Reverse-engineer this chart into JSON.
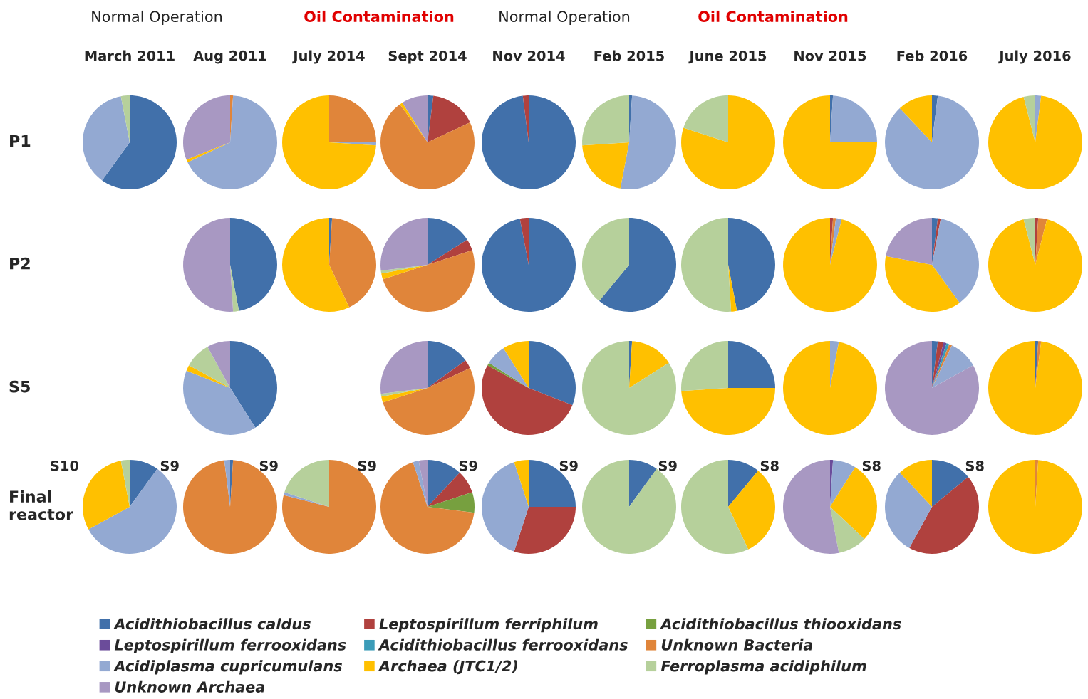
{
  "chart_data": [
    {
      "type": "other",
      "annotations": [
        "Normal Operation",
        "Oil Contamination",
        "Normal Operation",
        "Oil Contamination"
      ]
    },
    {
      "type": "pie",
      "title": "March 2011",
      "ylabel": "P1",
      "categories": [
        null,
        null,
        null
      ],
      "values": [
        60,
        37,
        3
      ],
      "colors": [
        "#4170aa",
        "#93a9d2",
        "#b6d09b"
      ]
    },
    {
      "type": "pie",
      "title": "Aug 2011",
      "categories": [
        null,
        null,
        null,
        null
      ],
      "values": [
        1,
        67,
        1,
        31
      ],
      "colors": [
        "#e0853a",
        "#93a9d2",
        "#ffc000",
        "#a898c2"
      ]
    },
    {
      "type": "pie",
      "title": "July 2014",
      "categories": [
        null,
        null,
        null
      ],
      "values": [
        25,
        1,
        74
      ],
      "colors": [
        "#e0853a",
        "#93a9d2",
        "#ffc000"
      ]
    },
    {
      "type": "pie",
      "title": "Sept 2014",
      "categories": [
        null,
        null,
        null,
        null,
        null
      ],
      "values": [
        2,
        16,
        72,
        1,
        9
      ],
      "colors": [
        "#4170aa",
        "#b0413e",
        "#e0853a",
        "#ffc000",
        "#a898c2"
      ]
    },
    {
      "type": "pie",
      "title": "Nov 2014",
      "categories": [
        null,
        null
      ],
      "values": [
        98,
        2
      ],
      "colors": [
        "#4170aa",
        "#b0413e"
      ]
    },
    {
      "type": "pie",
      "title": "Feb 2015",
      "categories": [
        null,
        null,
        null,
        null
      ],
      "values": [
        1,
        52,
        21,
        26
      ],
      "colors": [
        "#4170aa",
        "#93a9d2",
        "#ffc000",
        "#b6d09b"
      ]
    },
    {
      "type": "pie",
      "title": "June 2015",
      "categories": [
        null,
        null
      ],
      "values": [
        80,
        20
      ],
      "colors": [
        "#ffc000",
        "#b6d09b"
      ]
    },
    {
      "type": "pie",
      "title": "Nov 2015",
      "categories": [
        null,
        null,
        null
      ],
      "values": [
        1,
        24,
        75
      ],
      "colors": [
        "#4170aa",
        "#93a9d2",
        "#ffc000"
      ]
    },
    {
      "type": "pie",
      "title": "Feb 2016",
      "categories": [
        null,
        null,
        null
      ],
      "values": [
        2,
        86,
        12
      ],
      "colors": [
        "#4170aa",
        "#93a9d2",
        "#ffc000"
      ]
    },
    {
      "type": "pie",
      "title": "July 2016",
      "categories": [
        null,
        null,
        null
      ],
      "values": [
        2,
        94,
        4
      ],
      "colors": [
        "#93a9d2",
        "#ffc000",
        "#b6d09b"
      ]
    },
    {
      "type": "pie",
      "ylabel": "P2",
      "categories": [
        null,
        null,
        null
      ],
      "values": [
        47,
        2,
        51
      ],
      "colors": [
        "#4170aa",
        "#b6d09b",
        "#a898c2"
      ]
    },
    {
      "type": "pie",
      "categories": [
        null,
        null,
        null
      ],
      "values": [
        1,
        42,
        57
      ],
      "colors": [
        "#4170aa",
        "#e0853a",
        "#ffc000"
      ]
    },
    {
      "type": "pie",
      "categories": [
        null,
        null,
        null,
        null,
        null,
        null
      ],
      "values": [
        16,
        4,
        50,
        2,
        1,
        27
      ],
      "colors": [
        "#4170aa",
        "#b0413e",
        "#e0853a",
        "#ffc000",
        "#b6d09b",
        "#a898c2"
      ]
    },
    {
      "type": "pie",
      "categories": [
        null,
        null
      ],
      "values": [
        97,
        3
      ],
      "colors": [
        "#4170aa",
        "#b0413e"
      ]
    },
    {
      "type": "pie",
      "categories": [
        null,
        null
      ],
      "values": [
        61,
        39
      ],
      "colors": [
        "#4170aa",
        "#b6d09b"
      ]
    },
    {
      "type": "pie",
      "categories": [
        null,
        null,
        null
      ],
      "values": [
        47,
        2,
        51
      ],
      "colors": [
        "#4170aa",
        "#ffc000",
        "#b6d09b"
      ]
    },
    {
      "type": "pie",
      "categories": [
        null,
        null,
        null,
        null
      ],
      "values": [
        1,
        1,
        2,
        96
      ],
      "colors": [
        "#b0413e",
        "#e0853a",
        "#93a9d2",
        "#ffc000"
      ]
    },
    {
      "type": "pie",
      "categories": [
        null,
        null,
        null,
        null,
        null
      ],
      "values": [
        2,
        1,
        37,
        38,
        22
      ],
      "colors": [
        "#4170aa",
        "#b0413e",
        "#93a9d2",
        "#ffc000",
        "#a898c2"
      ]
    },
    {
      "type": "pie",
      "categories": [
        null,
        null,
        null,
        null
      ],
      "values": [
        1,
        3,
        92,
        4
      ],
      "colors": [
        "#b0413e",
        "#e0853a",
        "#ffc000",
        "#b6d09b"
      ]
    },
    {
      "type": "pie",
      "ylabel": "S5",
      "categories": [
        null,
        null,
        null,
        null,
        null
      ],
      "values": [
        41,
        40,
        2,
        9,
        8
      ],
      "colors": [
        "#4170aa",
        "#93a9d2",
        "#ffc000",
        "#b6d09b",
        "#a898c2"
      ]
    },
    {
      "type": "pie",
      "categories": [
        null,
        null,
        null,
        null,
        null,
        null
      ],
      "values": [
        15,
        3,
        52,
        2,
        1,
        27
      ],
      "colors": [
        "#4170aa",
        "#b0413e",
        "#e0853a",
        "#ffc000",
        "#b6d09b",
        "#a898c2"
      ]
    },
    {
      "type": "pie",
      "categories": [
        null,
        null,
        null,
        null,
        null
      ],
      "values": [
        31,
        52,
        1,
        7,
        9
      ],
      "colors": [
        "#4170aa",
        "#b0413e",
        "#77a03f",
        "#93a9d2",
        "#ffc000"
      ]
    },
    {
      "type": "pie",
      "categories": [
        null,
        null,
        null
      ],
      "values": [
        1,
        15,
        84
      ],
      "colors": [
        "#4170aa",
        "#ffc000",
        "#b6d09b"
      ]
    },
    {
      "type": "pie",
      "categories": [
        null,
        null,
        null
      ],
      "values": [
        25,
        49,
        26
      ],
      "colors": [
        "#4170aa",
        "#ffc000",
        "#b6d09b"
      ]
    },
    {
      "type": "pie",
      "categories": [
        null,
        null
      ],
      "values": [
        3,
        97
      ],
      "colors": [
        "#93a9d2",
        "#ffc000"
      ]
    },
    {
      "type": "pie",
      "categories": [
        null,
        null,
        null,
        null,
        null,
        null,
        null
      ],
      "values": [
        2,
        2,
        1,
        1,
        1,
        10,
        83
      ],
      "colors": [
        "#4170aa",
        "#b0413e",
        "#6b4c9a",
        "#3b9cb8",
        "#e0853a",
        "#93a9d2",
        "#a898c2"
      ]
    },
    {
      "type": "pie",
      "categories": [
        null,
        null,
        null
      ],
      "values": [
        1,
        1,
        98
      ],
      "colors": [
        "#4170aa",
        "#e0853a",
        "#ffc000"
      ]
    },
    {
      "type": "pie",
      "ylabel": "Final reactor",
      "annotations": [
        "S10"
      ],
      "categories": [
        null,
        null,
        null,
        null
      ],
      "values": [
        10,
        57,
        30,
        3
      ],
      "colors": [
        "#4170aa",
        "#93a9d2",
        "#ffc000",
        "#b6d09b"
      ]
    },
    {
      "type": "pie",
      "annotations": [
        "S9"
      ],
      "categories": [
        null,
        null,
        null
      ],
      "values": [
        1,
        97,
        2
      ],
      "colors": [
        "#4170aa",
        "#e0853a",
        "#93a9d2"
      ]
    },
    {
      "type": "pie",
      "annotations": [
        "S9"
      ],
      "categories": [
        null,
        null,
        null
      ],
      "values": [
        79,
        1,
        20
      ],
      "colors": [
        "#e0853a",
        "#93a9d2",
        "#b6d09b"
      ]
    },
    {
      "type": "pie",
      "annotations": [
        "S9"
      ],
      "categories": [
        null,
        null,
        null,
        null,
        null,
        null
      ],
      "values": [
        12,
        8,
        7,
        68,
        2,
        3
      ],
      "colors": [
        "#4170aa",
        "#b0413e",
        "#77a03f",
        "#e0853a",
        "#93a9d2",
        "#a898c2"
      ]
    },
    {
      "type": "pie",
      "annotations": [
        "S9"
      ],
      "categories": [
        null,
        null,
        null,
        null
      ],
      "values": [
        25,
        30,
        40,
        5
      ],
      "colors": [
        "#4170aa",
        "#b0413e",
        "#93a9d2",
        "#ffc000"
      ]
    },
    {
      "type": "pie",
      "annotations": [
        "S9"
      ],
      "categories": [
        null,
        null
      ],
      "values": [
        10,
        90
      ],
      "colors": [
        "#4170aa",
        "#b6d09b"
      ]
    },
    {
      "type": "pie",
      "annotations": [
        "S9"
      ],
      "categories": [
        null,
        null,
        null
      ],
      "values": [
        11,
        32,
        57
      ],
      "colors": [
        "#4170aa",
        "#ffc000",
        "#b6d09b"
      ]
    },
    {
      "type": "pie",
      "annotations": [
        "S8"
      ],
      "categories": [
        null,
        null,
        null,
        null,
        null
      ],
      "values": [
        1,
        8,
        28,
        10,
        53
      ],
      "colors": [
        "#6b4c9a",
        "#93a9d2",
        "#ffc000",
        "#b6d09b",
        "#a898c2"
      ]
    },
    {
      "type": "pie",
      "annotations": [
        "S8"
      ],
      "categories": [
        null,
        null,
        null,
        null
      ],
      "values": [
        14,
        44,
        30,
        12
      ],
      "colors": [
        "#4170aa",
        "#b0413e",
        "#93a9d2",
        "#ffc000"
      ]
    },
    {
      "type": "pie",
      "annotations": [
        "S8"
      ],
      "categories": [
        null,
        null
      ],
      "values": [
        1,
        99
      ],
      "colors": [
        "#e0853a",
        "#ffc000"
      ]
    },
    {
      "type": "other",
      "categories": [
        "Acidithiobacillus caldus",
        "Leptospirillum ferriphilum",
        "Acidithiobacillus thiooxidans",
        "Leptospirillum ferrooxidans",
        "Acidithiobacillus ferrooxidans",
        "Unknown Bacteria",
        "Acidiplasma cupricumulans",
        "Archaea (JTC1/2)",
        "Ferroplasma acidiphilum",
        "Unknown Archaea"
      ],
      "colors": [
        "#4170aa",
        "#b0413e",
        "#77a03f",
        "#6b4c9a",
        "#3b9cb8",
        "#e0853a",
        "#93a9d2",
        "#ffc000",
        "#b6d09b",
        "#a898c2"
      ]
    }
  ]
}
